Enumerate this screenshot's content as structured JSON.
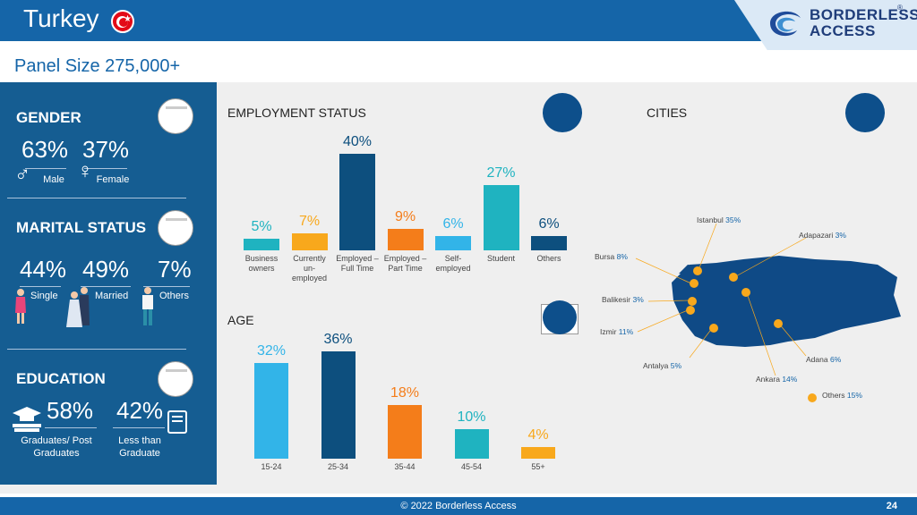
{
  "header": {
    "title": "Turkey",
    "logo_line1": "BORDERLESS",
    "logo_line2": "ACCESS",
    "panel_size": "Panel Size 275,000+"
  },
  "gender": {
    "heading": "GENDER",
    "male_pct": "63%",
    "female_pct": "37%",
    "male_label": "Male",
    "female_label": "Female"
  },
  "marital": {
    "heading": "MARITAL STATUS",
    "single_pct": "44%",
    "married_pct": "49%",
    "others_pct": "7%",
    "single_label": "Single",
    "married_label": "Married",
    "others_label": "Others"
  },
  "education": {
    "heading": "EDUCATION",
    "grad_pct": "58%",
    "less_pct": "42%",
    "grad_label": "Graduates/ Post Graduates",
    "less_label": "Less than Graduate"
  },
  "employment": {
    "title": "EMPLOYMENT STATUS"
  },
  "age": {
    "title": "AGE"
  },
  "cities": {
    "title": "CITIES",
    "items": [
      {
        "name": "Istanbul",
        "pct": "35%"
      },
      {
        "name": "Adapazari",
        "pct": "3%"
      },
      {
        "name": "Bursa",
        "pct": "8%"
      },
      {
        "name": "Balikesir",
        "pct": "3%"
      },
      {
        "name": "Izmir",
        "pct": "11%"
      },
      {
        "name": "Antalya",
        "pct": "5%"
      },
      {
        "name": "Adana",
        "pct": "6%"
      },
      {
        "name": "Ankara",
        "pct": "14%"
      },
      {
        "name": "Others",
        "pct": "15%"
      }
    ]
  },
  "chart_data": [
    {
      "type": "bar",
      "title": "EMPLOYMENT STATUS",
      "categories": [
        "Business owners",
        "Currently un-employed",
        "Employed – Full Time",
        "Employed – Part Time",
        "Self-employed",
        "Student",
        "Others"
      ],
      "values": [
        5,
        7,
        40,
        9,
        6,
        27,
        6
      ],
      "labels": [
        "5%",
        "7%",
        "40%",
        "9%",
        "6%",
        "27%",
        "6%"
      ],
      "colors": [
        "#1fb3c0",
        "#f8a81c",
        "#0d4f7e",
        "#f47d1a",
        "#32b4e8",
        "#1fb3c0",
        "#0d4f7e"
      ],
      "ylim": [
        0,
        40
      ]
    },
    {
      "type": "bar",
      "title": "AGE",
      "categories": [
        "15-24",
        "25-34",
        "35-44",
        "45-54",
        "55+"
      ],
      "values": [
        32,
        36,
        18,
        10,
        4
      ],
      "labels": [
        "32%",
        "36%",
        "18%",
        "10%",
        "4%"
      ],
      "colors": [
        "#32b4e8",
        "#0d4f7e",
        "#f47d1a",
        "#1fb3c0",
        "#f8a81c"
      ],
      "ylim": [
        0,
        36
      ]
    }
  ],
  "footer": {
    "copyright": "© 2022 Borderless Access",
    "page": "24"
  }
}
